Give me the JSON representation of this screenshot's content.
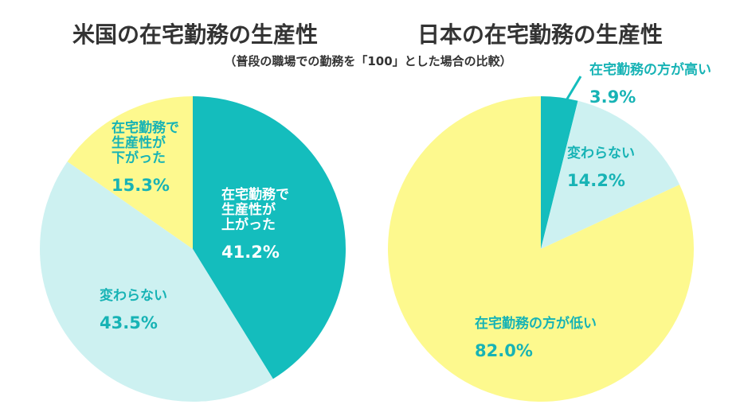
{
  "colors": {
    "teal": "#14bdbd",
    "light_teal": "#cdf1f1",
    "yellow": "#fdf98e",
    "white_text": "#ffffff",
    "teal_text": "#17b3b5",
    "title_text": "#333333"
  },
  "subtitle": "（普段の職場での勤務を「100」とした場合の比較）",
  "chart_data": [
    {
      "type": "pie",
      "title": "米国の在宅勤務の生産性",
      "start_angle_deg": 0,
      "direction": "clockwise",
      "slices": [
        {
          "label_lines": [
            "在宅勤務で",
            "生産性が",
            "上がった"
          ],
          "value": 41.2,
          "display": "41.2%",
          "color": "#14bdbd",
          "text_color": "#ffffff"
        },
        {
          "label_lines": [
            "変わらない"
          ],
          "value": 43.5,
          "display": "43.5%",
          "color": "#cdf1f1",
          "text_color": "#17b3b5"
        },
        {
          "label_lines": [
            "在宅勤務で",
            "生産性が",
            "下がった"
          ],
          "value": 15.3,
          "display": "15.3%",
          "color": "#fdf98e",
          "text_color": "#17b3b5"
        }
      ]
    },
    {
      "type": "pie",
      "title": "日本の在宅勤務の生産性",
      "start_angle_deg": 0,
      "direction": "clockwise",
      "slices": [
        {
          "label_lines": [
            "在宅勤務の方が高い"
          ],
          "value": 3.9,
          "display": "3.9%",
          "color": "#14bdbd",
          "text_color": "#17b3b5",
          "callout": true
        },
        {
          "label_lines": [
            "変わらない"
          ],
          "value": 14.2,
          "display": "14.2%",
          "color": "#cdf1f1",
          "text_color": "#17b3b5"
        },
        {
          "label_lines": [
            "在宅勤務の方が低い"
          ],
          "value": 82.0,
          "display": "82.0%",
          "color": "#fdf98e",
          "text_color": "#17b3b5"
        }
      ]
    }
  ]
}
